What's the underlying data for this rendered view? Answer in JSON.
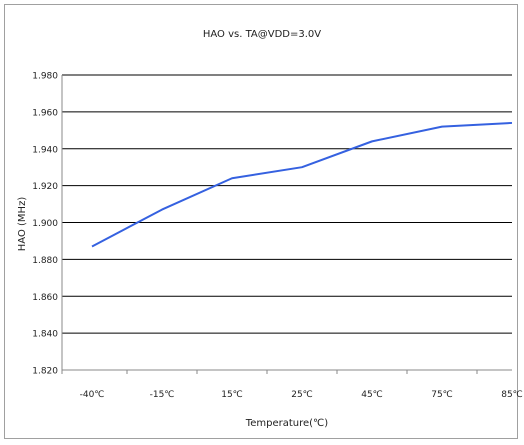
{
  "chart_data": {
    "type": "line",
    "title": "HAO vs. TA@VDD=3.0V",
    "xlabel": "Temperature(℃)",
    "ylabel": "HAO (MHz)",
    "categories": [
      "-40℃",
      "-15℃",
      "15℃",
      "25℃",
      "45℃",
      "75℃",
      "85℃"
    ],
    "series": [
      {
        "values": [
          1.887,
          1.907,
          1.924,
          1.93,
          1.944,
          1.952,
          1.954
        ]
      }
    ],
    "ylim": [
      1.82,
      1.98
    ],
    "yticks": [
      "1.820",
      "1.840",
      "1.860",
      "1.880",
      "1.900",
      "1.920",
      "1.940",
      "1.960",
      "1.980"
    ],
    "grid": true,
    "colors": {
      "line": "#3561e0",
      "grid": "#000000",
      "axis": "#888888",
      "text": "#222222"
    }
  }
}
